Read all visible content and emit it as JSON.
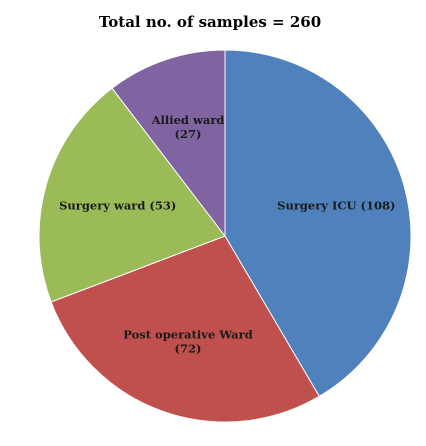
{
  "chart_data": {
    "type": "pie",
    "title": "Total no. of samples = 260",
    "start_angle_deg": 0,
    "direction": "clockwise",
    "slices": [
      {
        "label_lines": [
          "Surgery ICU (108)"
        ],
        "value": 108,
        "color": "#4f81bd"
      },
      {
        "label_lines": [
          "Post operative Ward",
          "(72)"
        ],
        "value": 72,
        "color": "#c0504d"
      },
      {
        "label_lines": [
          "Surgery ward (53)"
        ],
        "value": 53,
        "color": "#9bbb59"
      },
      {
        "label_lines": [
          "Allied ward",
          "(27)"
        ],
        "value": 27,
        "color": "#8064a2"
      }
    ]
  }
}
